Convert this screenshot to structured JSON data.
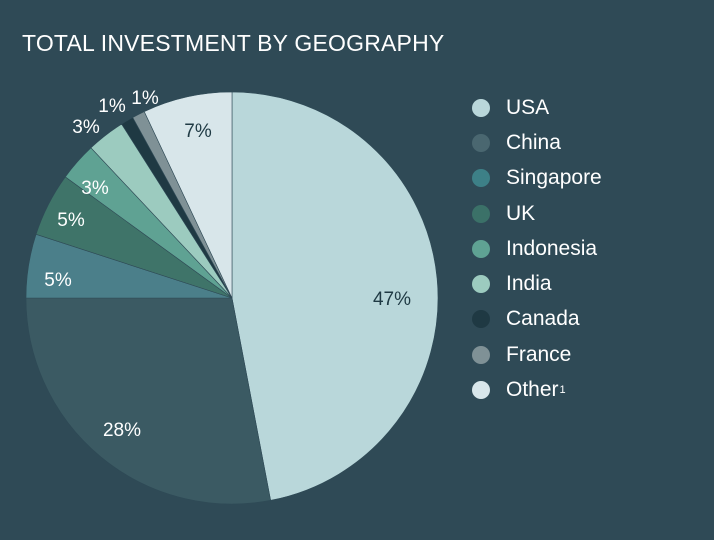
{
  "chart_data": {
    "type": "pie",
    "title": "TOTAL INVESTMENT BY GEOGRAPHY",
    "slices": [
      {
        "name": "USA",
        "value": 47,
        "label": "47%",
        "color": "#b9d7da",
        "label_color": "#1f3a44"
      },
      {
        "name": "China",
        "value": 28,
        "label": "28%",
        "color": "#3b5a63",
        "label_color": "#ffffff"
      },
      {
        "name": "Singapore",
        "value": 5,
        "label": "5%",
        "color": "#4b7f8a",
        "label_color": "#ffffff"
      },
      {
        "name": "UK",
        "value": 5,
        "label": "5%",
        "color": "#3f7469",
        "label_color": "#ffffff"
      },
      {
        "name": "Indonesia",
        "value": 3,
        "label": "3%",
        "color": "#5fa293",
        "label_color": "#ffffff"
      },
      {
        "name": "India",
        "value": 3,
        "label": "3%",
        "color": "#9ccbbf",
        "label_color": "#ffffff"
      },
      {
        "name": "Canada",
        "value": 1,
        "label": "1%",
        "color": "#1f3943",
        "label_color": "#ffffff"
      },
      {
        "name": "France",
        "value": 1,
        "label": "1%",
        "color": "#7f9196",
        "label_color": "#ffffff"
      },
      {
        "name": "Other",
        "value": 7,
        "label": "7%",
        "color": "#d8e6ea",
        "label_color": "#1f3a44"
      }
    ],
    "legend": {
      "placement": "right",
      "items": [
        {
          "name": "USA",
          "color": "#b9d7da"
        },
        {
          "name": "China",
          "color": "#4a6770"
        },
        {
          "name": "Singapore",
          "color": "#3d8087"
        },
        {
          "name": "UK",
          "color": "#3b7168"
        },
        {
          "name": "Indonesia",
          "color": "#5fa293"
        },
        {
          "name": "India",
          "color": "#9ccbbf"
        },
        {
          "name": "Canada",
          "color": "#1f3943"
        },
        {
          "name": "France",
          "color": "#7f9196"
        },
        {
          "name": "Other",
          "color": "#d8e6ea",
          "superscript": "1"
        }
      ]
    }
  }
}
